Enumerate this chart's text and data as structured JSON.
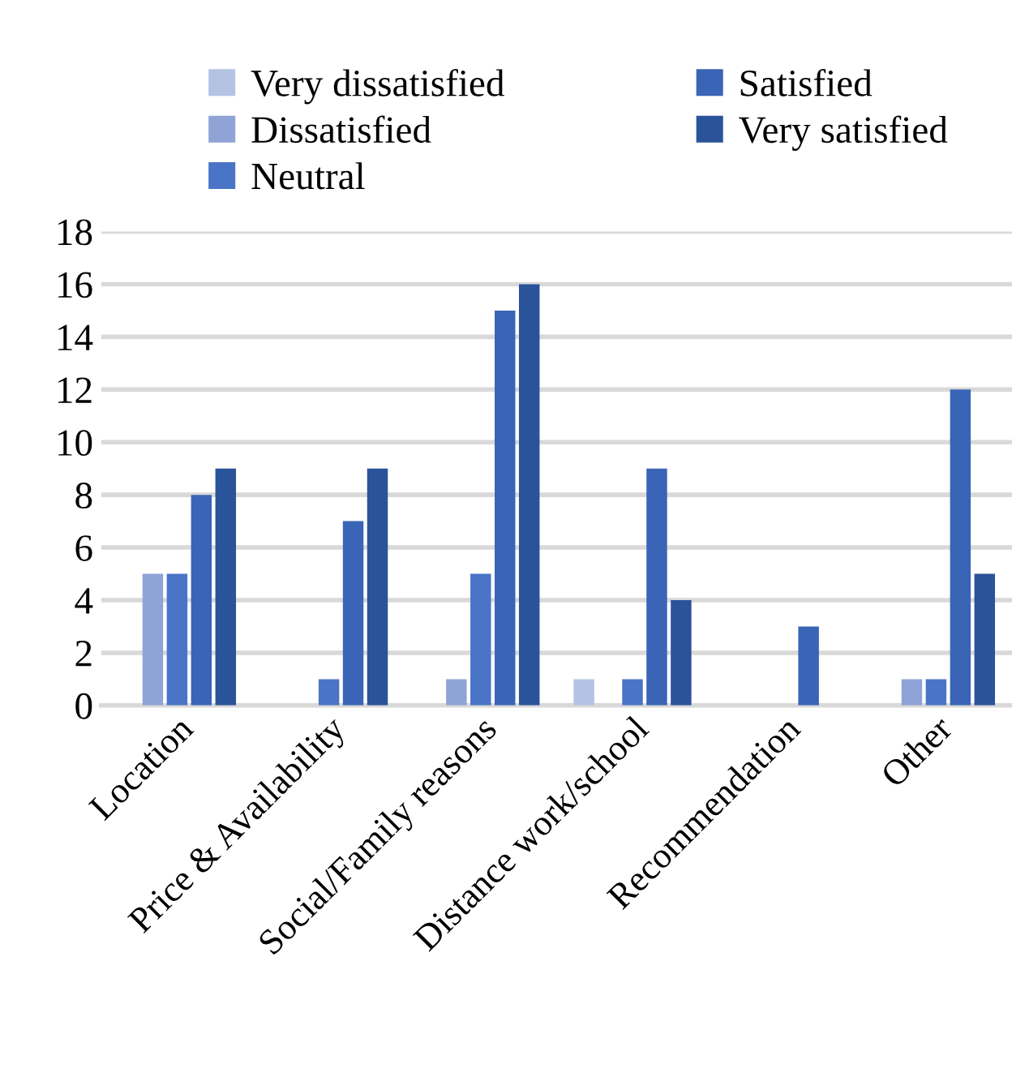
{
  "chart_data": {
    "type": "bar",
    "categories": [
      "Location",
      "Price & Availability",
      "Social/Family reasons",
      "Distance work/school",
      "Recommendation",
      "Other"
    ],
    "series": [
      {
        "name": "Very dissatisfied",
        "color": "#b4c3e4",
        "values": [
          0,
          0,
          0,
          1,
          0,
          0
        ]
      },
      {
        "name": "Dissatisfied",
        "color": "#8fa3d6",
        "values": [
          5,
          0,
          1,
          0,
          0,
          1
        ]
      },
      {
        "name": "Neutral",
        "color": "#4a74c6",
        "values": [
          5,
          1,
          5,
          1,
          0,
          1
        ]
      },
      {
        "name": "Satisfied",
        "color": "#3a64b6",
        "values": [
          8,
          7,
          15,
          9,
          3,
          12
        ]
      },
      {
        "name": "Very satisfied",
        "color": "#2a5399",
        "values": [
          9,
          9,
          16,
          4,
          0,
          5
        ]
      }
    ],
    "ylim": [
      0,
      18
    ],
    "yticks": [
      0,
      2,
      4,
      6,
      8,
      10,
      12,
      14,
      16,
      18
    ],
    "grid": "y",
    "legend": "top"
  }
}
